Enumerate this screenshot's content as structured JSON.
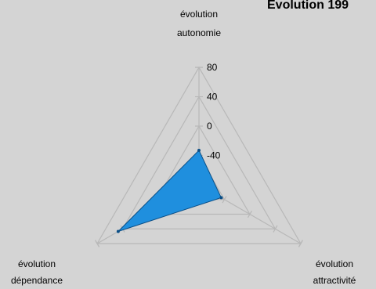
{
  "chart_data": {
    "type": "radar",
    "title": "Evolution 199",
    "axes": [
      {
        "label_lines": [
          "évolution",
          "autonomie"
        ]
      },
      {
        "label_lines": [
          "évolution",
          "attractivité"
        ]
      },
      {
        "label_lines": [
          "évolution",
          "dépendance"
        ]
      }
    ],
    "ticks": [
      80,
      40,
      0,
      -40
    ],
    "range": [
      -80,
      80
    ],
    "grid": true,
    "legend": "none",
    "series": [
      {
        "values": [
          -33,
          -45,
          47
        ]
      }
    ]
  },
  "colors": {
    "background": "#d4d4d4",
    "grid": "#b8b8b8",
    "text": "#000000",
    "series_fill": "#1f8fde",
    "series_stroke": "#0a4e86"
  }
}
